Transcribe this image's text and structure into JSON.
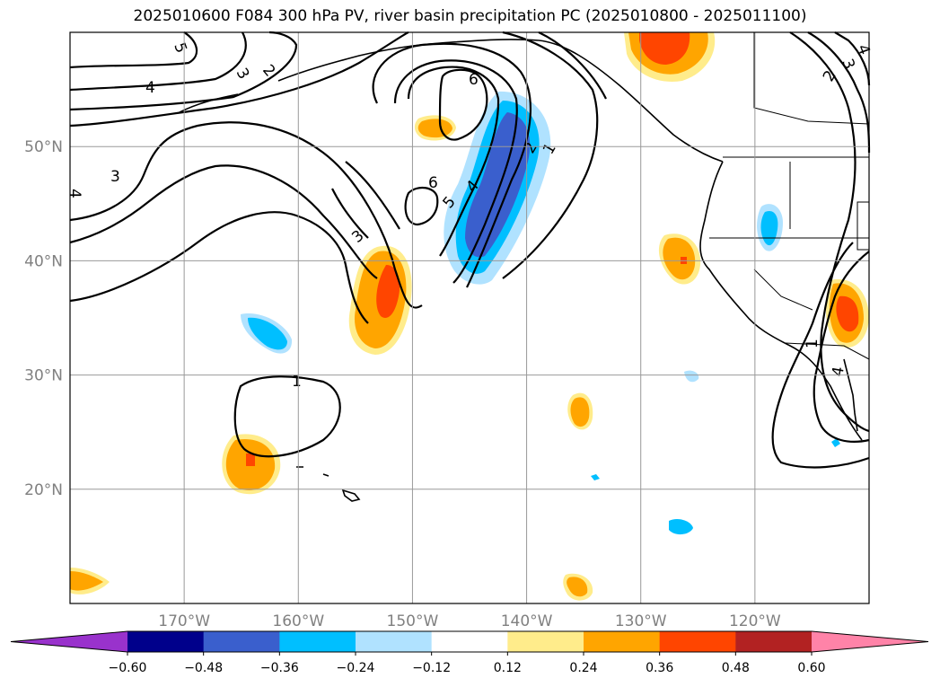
{
  "title": "2025010600 F084 300 hPa PV, river basin precipitation PC (2025010800 - 2025011100)",
  "map": {
    "lon_range": [
      -180,
      -110
    ],
    "lat_range": [
      10,
      60
    ],
    "lat_ticks": [
      {
        "value": 50,
        "label": "50°N"
      },
      {
        "value": 40,
        "label": "40°N"
      },
      {
        "value": 30,
        "label": "30°N"
      },
      {
        "value": 20,
        "label": "20°N"
      }
    ],
    "lon_ticks": [
      {
        "value": -170,
        "label": "170°W"
      },
      {
        "value": -160,
        "label": "160°W"
      },
      {
        "value": -150,
        "label": "150°W"
      },
      {
        "value": -140,
        "label": "140°W"
      },
      {
        "value": -130,
        "label": "130°W"
      },
      {
        "value": -120,
        "label": "120°W"
      }
    ],
    "contour_labels": [
      "5",
      "4",
      "3",
      "2",
      "6",
      "6",
      "3",
      "4",
      "5",
      "2",
      "1",
      "1",
      "4",
      "3",
      "2",
      "4",
      "3",
      "1",
      "4"
    ]
  },
  "colorbar": {
    "labels": [
      "−0.60",
      "−0.48",
      "−0.36",
      "−0.24",
      "−0.12",
      "0.12",
      "0.24",
      "0.36",
      "0.48",
      "0.60"
    ],
    "colors": [
      "#9932cc",
      "#00008b",
      "#3a5fcd",
      "#00bfff",
      "#b0e2ff",
      "#ffffff",
      "#ffec8b",
      "#ffa500",
      "#ff4500",
      "#b22222",
      "#ff83a8"
    ]
  }
}
